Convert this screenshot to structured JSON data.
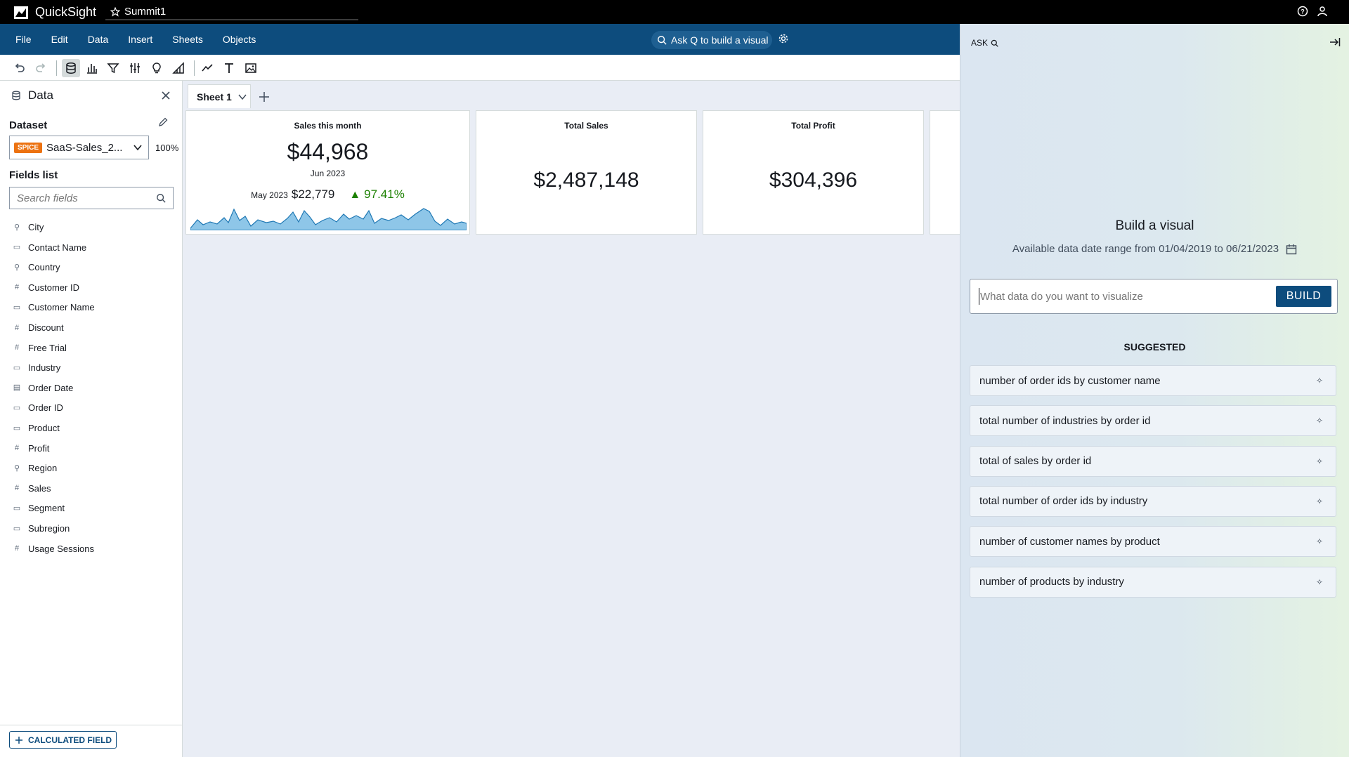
{
  "app": {
    "name": "QuickSight",
    "document_title": "Summit1"
  },
  "menu": [
    "File",
    "Edit",
    "Data",
    "Insert",
    "Sheets",
    "Objects"
  ],
  "ask_bar": {
    "label": "Ask Q to build a visual"
  },
  "data_panel": {
    "title": "Data",
    "dataset_label": "Dataset",
    "dataset_badge": "SPICE",
    "dataset_name": "SaaS-Sales_2...",
    "dataset_percent": "100%",
    "fields_label": "Fields list",
    "search_placeholder": "Search fields",
    "fields": [
      {
        "name": "City",
        "type": "geo"
      },
      {
        "name": "Contact Name",
        "type": "text"
      },
      {
        "name": "Country",
        "type": "geo"
      },
      {
        "name": "Customer ID",
        "type": "number"
      },
      {
        "name": "Customer Name",
        "type": "text"
      },
      {
        "name": "Discount",
        "type": "number"
      },
      {
        "name": "Free Trial",
        "type": "number"
      },
      {
        "name": "Industry",
        "type": "text"
      },
      {
        "name": "Order Date",
        "type": "date"
      },
      {
        "name": "Order ID",
        "type": "text"
      },
      {
        "name": "Product",
        "type": "text"
      },
      {
        "name": "Profit",
        "type": "number"
      },
      {
        "name": "Region",
        "type": "geo"
      },
      {
        "name": "Sales",
        "type": "number"
      },
      {
        "name": "Segment",
        "type": "text"
      },
      {
        "name": "Subregion",
        "type": "text"
      },
      {
        "name": "Usage Sessions",
        "type": "number"
      }
    ],
    "calculated_field_label": "CALCULATED FIELD"
  },
  "sheet": {
    "tab_label": "Sheet 1"
  },
  "kpi_cards": {
    "sales_month": {
      "title": "Sales this month",
      "value": "$44,968",
      "period": "Jun 2023",
      "compare_period": "May 2023",
      "compare_value": "$22,779",
      "change": "97.41%"
    },
    "total_sales": {
      "title": "Total Sales",
      "value": "$2,487,148"
    },
    "total_profit": {
      "title": "Total Profit",
      "value": "$304,396"
    }
  },
  "ask_panel": {
    "header": "ASK",
    "heading": "Build a visual",
    "date_range": "Available data date range from 01/04/2019 to 06/21/2023",
    "input_placeholder": "What data do you want to visualize",
    "build_label": "BUILD",
    "suggested_label": "SUGGESTED",
    "suggestions": [
      "number of order ids by customer name",
      "total number of industries by order id",
      "total of sales by order id",
      "total number of order ids by industry",
      "number of customer names by product",
      "number of products by industry"
    ]
  },
  "colors": {
    "topbar": "#000000",
    "menubar": "#0d4c7d",
    "accent": "#0d4c7d",
    "spice": "#ec7211",
    "positive": "#1d8102",
    "sparkline": "#5aa7d8"
  },
  "icons": [
    "quicksight-logo-icon",
    "star-icon",
    "help-icon",
    "user-icon",
    "search-icon",
    "gear-icon",
    "undo-icon",
    "redo-icon",
    "dataset-icon",
    "visualize-icon",
    "filter-icon",
    "parameters-icon",
    "insights-icon",
    "forecast-icon",
    "line-icon",
    "text-icon",
    "image-icon",
    "close-icon",
    "pencil-icon",
    "chevron-down-icon",
    "plus-icon",
    "calendar-icon",
    "collapse-panel-icon",
    "sparkle-icon"
  ]
}
